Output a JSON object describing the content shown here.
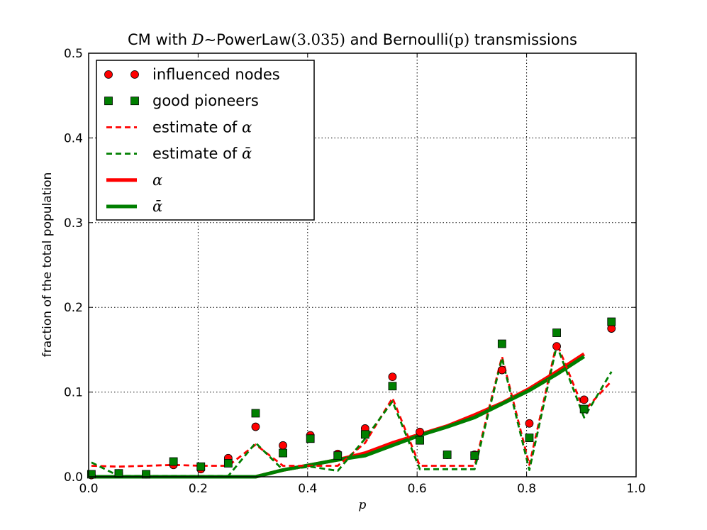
{
  "chart_data": {
    "type": "line",
    "title": {
      "prefix": "CM with ",
      "var": "D",
      "tilde": "∼",
      "dist": "PowerLaw",
      "param": "(3.035)",
      "mid": " and Bernoulli",
      "p": "(p)",
      "suffix": " transmissions"
    },
    "xlabel": "p",
    "ylabel": "fraction of the total population",
    "xlim": [
      0.0,
      1.0
    ],
    "ylim": [
      0.0,
      0.5
    ],
    "xticks": [
      0.0,
      0.2,
      0.4,
      0.6,
      0.8,
      1.0
    ],
    "yticks": [
      0.0,
      0.1,
      0.2,
      0.3,
      0.4,
      0.5
    ],
    "xtick_labels": [
      "0.0",
      "0.2",
      "0.4",
      "0.6",
      "0.8",
      "1.0"
    ],
    "ytick_labels": [
      "0.0",
      "0.1",
      "0.2",
      "0.3",
      "0.4",
      "0.5"
    ],
    "grid": true,
    "legend_placement": "top-left",
    "colors": {
      "red": "#ff0000",
      "green": "#007f00"
    },
    "series": [
      {
        "name": "influenced nodes",
        "kind": "marker-circle",
        "color": "#ff0000",
        "x": [
          0.005,
          0.055,
          0.105,
          0.155,
          0.205,
          0.255,
          0.305,
          0.355,
          0.405,
          0.455,
          0.505,
          0.555,
          0.605,
          0.655,
          0.705,
          0.755,
          0.805,
          0.855,
          0.905,
          0.955
        ],
        "y": [
          0.002,
          0.004,
          0.003,
          0.014,
          0.009,
          0.022,
          0.059,
          0.037,
          0.049,
          0.027,
          0.057,
          0.118,
          0.053,
          0.026,
          0.026,
          0.126,
          0.063,
          0.154,
          0.091,
          0.175
        ]
      },
      {
        "name": "good pioneers",
        "kind": "marker-square",
        "color": "#007f00",
        "x": [
          0.005,
          0.055,
          0.105,
          0.155,
          0.205,
          0.255,
          0.305,
          0.355,
          0.405,
          0.455,
          0.505,
          0.555,
          0.605,
          0.655,
          0.705,
          0.755,
          0.805,
          0.855,
          0.905,
          0.955
        ],
        "y": [
          0.003,
          0.004,
          0.003,
          0.018,
          0.012,
          0.016,
          0.075,
          0.028,
          0.045,
          0.025,
          0.05,
          0.107,
          0.043,
          0.026,
          0.025,
          0.157,
          0.046,
          0.17,
          0.08,
          0.183
        ]
      },
      {
        "name": "estimate of α",
        "kind": "dashed",
        "color": "#ff0000",
        "x": [
          0.005,
          0.055,
          0.105,
          0.155,
          0.205,
          0.255,
          0.305,
          0.355,
          0.405,
          0.455,
          0.505,
          0.555,
          0.605,
          0.655,
          0.705,
          0.755,
          0.805,
          0.855,
          0.905,
          0.955
        ],
        "y": [
          0.013,
          0.012,
          0.013,
          0.014,
          0.013,
          0.013,
          0.038,
          0.013,
          0.013,
          0.013,
          0.04,
          0.093,
          0.013,
          0.013,
          0.013,
          0.142,
          0.014,
          0.158,
          0.078,
          0.113
        ]
      },
      {
        "name": "estimate of ᾱ",
        "kind": "dashed",
        "color": "#007f00",
        "x": [
          0.005,
          0.055,
          0.105,
          0.155,
          0.205,
          0.255,
          0.305,
          0.355,
          0.405,
          0.455,
          0.505,
          0.555,
          0.605,
          0.655,
          0.705,
          0.755,
          0.805,
          0.855,
          0.905,
          0.955
        ],
        "y": [
          0.017,
          0.001,
          0.001,
          0.001,
          0.001,
          0.001,
          0.04,
          0.008,
          0.012,
          0.007,
          0.045,
          0.089,
          0.009,
          0.009,
          0.009,
          0.14,
          0.008,
          0.155,
          0.07,
          0.124
        ]
      },
      {
        "name": "α",
        "kind": "solid",
        "color": "#ff0000",
        "x": [
          0.005,
          0.055,
          0.105,
          0.155,
          0.205,
          0.255,
          0.305,
          0.355,
          0.405,
          0.455,
          0.505,
          0.555,
          0.605,
          0.655,
          0.705,
          0.755,
          0.805,
          0.855,
          0.905
        ],
        "y": [
          0.0,
          0.0,
          0.0,
          0.0,
          0.0,
          0.0,
          0.0,
          0.008,
          0.014,
          0.02,
          0.028,
          0.04,
          0.05,
          0.06,
          0.073,
          0.087,
          0.104,
          0.124,
          0.145
        ]
      },
      {
        "name": "ᾱ",
        "kind": "solid",
        "color": "#007f00",
        "x": [
          0.005,
          0.055,
          0.105,
          0.155,
          0.205,
          0.255,
          0.305,
          0.355,
          0.405,
          0.455,
          0.505,
          0.555,
          0.605,
          0.655,
          0.705,
          0.755,
          0.805,
          0.855,
          0.905
        ],
        "y": [
          0.0,
          0.0,
          0.0,
          0.0,
          0.0,
          0.0,
          0.0,
          0.008,
          0.014,
          0.02,
          0.025,
          0.037,
          0.049,
          0.059,
          0.07,
          0.086,
          0.102,
          0.121,
          0.142
        ]
      }
    ],
    "legend": [
      {
        "prefix": "influenced nodes",
        "math": ""
      },
      {
        "prefix": "good pioneers",
        "math": ""
      },
      {
        "prefix": "estimate of ",
        "math": "α"
      },
      {
        "prefix": "estimate of ",
        "math": "ᾱ"
      },
      {
        "prefix": "",
        "math": "α"
      },
      {
        "prefix": "",
        "math": "ᾱ"
      }
    ]
  }
}
